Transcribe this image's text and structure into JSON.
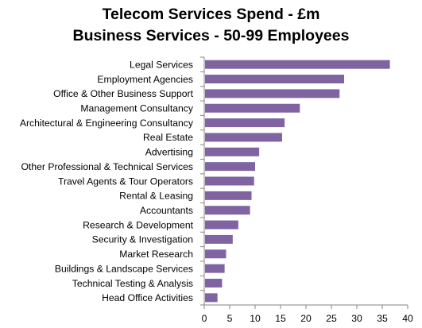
{
  "chart_data": {
    "type": "bar",
    "orientation": "horizontal",
    "title_lines": [
      "Telecom Services Spend - £m",
      "Business Services - 50-99 Employees"
    ],
    "categories": [
      "Legal Services",
      "Employment Agencies",
      "Office & Other Business Support",
      "Management Consultancy",
      "Architectural & Engineering Consultancy",
      "Real Estate",
      "Advertising",
      "Other Professional & Technical Services",
      "Travel Agents & Tour Operators",
      "Rental & Leasing",
      "Accountants",
      "Research & Development",
      "Security & Investigation",
      "Market Research",
      "Buildings & Landscape Services",
      "Technical Testing & Analysis",
      "Head Office Activities"
    ],
    "values": [
      36.5,
      27.5,
      26.6,
      18.8,
      15.8,
      15.3,
      10.8,
      10.0,
      9.8,
      9.3,
      9.0,
      6.7,
      5.6,
      4.3,
      4.0,
      3.5,
      2.6
    ],
    "x_ticks": [
      "0",
      "5",
      "10",
      "15",
      "20",
      "25",
      "30",
      "35",
      "40"
    ],
    "xlim": [
      0,
      40
    ],
    "xlabel": "",
    "ylabel": "",
    "bar_color": "#8064a2",
    "axis_color": "#868686",
    "grid": false,
    "legend": "none"
  }
}
